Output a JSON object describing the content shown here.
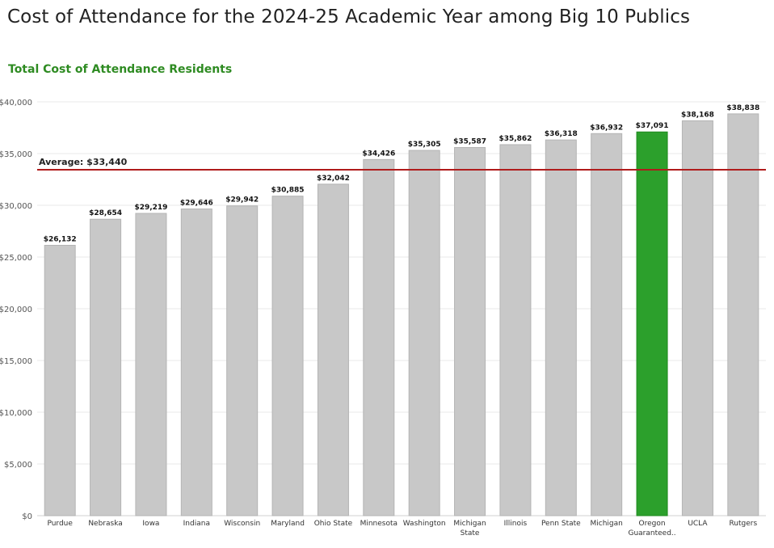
{
  "title": "Cost of Attendance for the 2024-25 Academic Year among Big 10 Publics",
  "subtitle": "Total Cost of Attendance Residents",
  "colors": {
    "bar": "#c8c8c8",
    "bar_stroke": "#b4b4b4",
    "highlight": "#2ca02c",
    "highlight_stroke": "#1f8a1f",
    "average_line": "#b01c1c",
    "subtitle": "#2e8b22",
    "grid": "#e8e8e8"
  },
  "chart_data": {
    "type": "bar",
    "title": "Total Cost of Attendance Residents",
    "xlabel": "",
    "ylabel": "",
    "ylim": [
      0,
      40000
    ],
    "yticks": [
      0,
      5000,
      10000,
      15000,
      20000,
      25000,
      30000,
      35000,
      40000
    ],
    "ytick_labels": [
      "$0",
      "$5,000",
      "$10,000",
      "$15,000",
      "$20,000",
      "$25,000",
      "$30,000",
      "$35,000",
      "$40,000"
    ],
    "categories": [
      [
        "Purdue"
      ],
      [
        "Nebraska"
      ],
      [
        "Iowa"
      ],
      [
        "Indiana"
      ],
      [
        "Wisconsin"
      ],
      [
        "Maryland"
      ],
      [
        "Ohio State"
      ],
      [
        "Minnesota"
      ],
      [
        "Washington"
      ],
      [
        "Michigan",
        "State"
      ],
      [
        "Illinois"
      ],
      [
        "Penn State"
      ],
      [
        "Michigan"
      ],
      [
        "Oregon",
        "Guaranteed.."
      ],
      [
        "UCLA"
      ],
      [
        "Rutgers"
      ]
    ],
    "values": [
      26132,
      28654,
      29219,
      29646,
      29942,
      30885,
      32042,
      34426,
      35305,
      35587,
      35862,
      36318,
      36932,
      37091,
      38168,
      38838
    ],
    "value_labels": [
      "$26,132",
      "$28,654",
      "$29,219",
      "$29,646",
      "$29,942",
      "$30,885",
      "$32,042",
      "$34,426",
      "$35,305",
      "$35,587",
      "$35,862",
      "$36,318",
      "$36,932",
      "$37,091",
      "$38,168",
      "$38,838"
    ],
    "highlight_index": 13,
    "average": 33440,
    "average_label": "Average: $33,440",
    "grid": true
  }
}
